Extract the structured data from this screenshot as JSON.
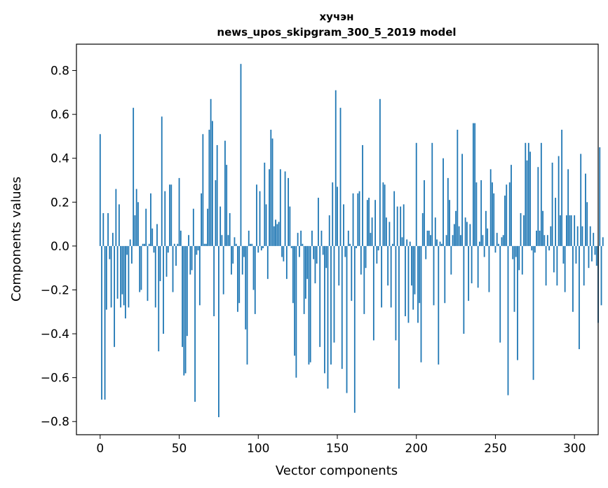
{
  "chart_data": {
    "type": "bar",
    "title": "хучэн",
    "subtitle": "news_upos_skipgram_300_5_2019 model",
    "xlabel": "Vector components",
    "ylabel": "Components values",
    "xlim": [
      -15,
      315
    ],
    "ylim": [
      -0.86,
      0.92
    ],
    "xticks": [
      0,
      50,
      100,
      150,
      200,
      250,
      300
    ],
    "yticks": [
      -0.8,
      -0.6,
      -0.4,
      -0.2,
      0.0,
      0.2,
      0.4,
      0.6,
      0.8
    ],
    "x_tick_labels": [
      "0",
      "50",
      "100",
      "150",
      "200",
      "250",
      "300"
    ],
    "y_tick_labels": [
      "−0.8",
      "−0.6",
      "−0.4",
      "−0.2",
      "0.0",
      "0.2",
      "0.4",
      "0.6",
      "0.8"
    ],
    "bar_color": "#1f77b4",
    "values": [
      0.51,
      -0.7,
      0.15,
      -0.7,
      -0.29,
      0.15,
      -0.06,
      -0.28,
      0.06,
      -0.46,
      0.26,
      -0.24,
      0.19,
      -0.28,
      -0.22,
      -0.27,
      -0.33,
      -0.04,
      -0.28,
      0.03,
      -0.08,
      0.63,
      0.14,
      0.26,
      0.2,
      -0.21,
      -0.2,
      0.01,
      0.01,
      0.17,
      -0.25,
      0.01,
      0.24,
      0.08,
      -0.03,
      -0.28,
      0.1,
      -0.48,
      -0.16,
      0.59,
      -0.4,
      0.25,
      -0.14,
      -0.03,
      0.28,
      0.28,
      -0.21,
      0.01,
      -0.09,
      0.01,
      0.31,
      0.07,
      -0.46,
      -0.59,
      -0.58,
      -0.41,
      0.05,
      -0.13,
      -0.11,
      0.17,
      -0.71,
      -0.04,
      -0.02,
      -0.27,
      0.24,
      0.51,
      0.01,
      0.01,
      0.17,
      0.53,
      0.67,
      0.57,
      -0.32,
      0.3,
      0.46,
      -0.78,
      0.18,
      0.05,
      -0.22,
      0.48,
      0.37,
      0.05,
      0.15,
      -0.13,
      -0.08,
      0.04,
      0.01,
      -0.3,
      -0.26,
      0.83,
      -0.13,
      -0.05,
      -0.38,
      -0.54,
      0.07,
      0.01,
      0.01,
      -0.2,
      -0.31,
      0.28,
      -0.03,
      0.25,
      -0.02,
      -0.01,
      0.38,
      0.19,
      -0.15,
      0.35,
      0.53,
      0.49,
      0.09,
      0.12,
      0.1,
      0.11,
      0.35,
      -0.05,
      -0.07,
      0.34,
      -0.15,
      0.31,
      0.18,
      -0.01,
      -0.26,
      -0.5,
      -0.6,
      0.06,
      -0.05,
      0.07,
      0.01,
      -0.31,
      -0.24,
      -0.15,
      -0.54,
      -0.53,
      0.07,
      -0.06,
      -0.17,
      -0.08,
      0.22,
      -0.46,
      0.07,
      -0.04,
      -0.58,
      -0.1,
      -0.65,
      0.14,
      -0.54,
      0.29,
      -0.44,
      0.71,
      0.27,
      -0.18,
      0.63,
      -0.56,
      0.19,
      -0.05,
      -0.67,
      0.07,
      0.01,
      -0.25,
      0.24,
      -0.76,
      -0.01,
      0.24,
      0.25,
      -0.13,
      0.46,
      -0.31,
      -0.1,
      0.21,
      0.22,
      0.06,
      0.13,
      -0.43,
      0.21,
      -0.08,
      -0.02,
      0.67,
      -0.28,
      0.29,
      0.28,
      0.13,
      -0.18,
      0.11,
      -0.28,
      0.01,
      0.25,
      -0.43,
      0.18,
      -0.65,
      0.18,
      0.04,
      0.19,
      -0.32,
      0.03,
      -0.35,
      0.02,
      -0.18,
      -0.29,
      -0.22,
      0.47,
      -0.35,
      -0.26,
      -0.53,
      0.15,
      0.3,
      -0.06,
      0.07,
      0.07,
      0.05,
      0.47,
      -0.27,
      0.13,
      0.03,
      -0.54,
      0.02,
      0.01,
      0.4,
      -0.26,
      0.05,
      0.31,
      0.21,
      -0.13,
      0.05,
      0.1,
      0.16,
      0.53,
      0.09,
      0.05,
      0.42,
      -0.4,
      0.13,
      0.11,
      -0.25,
      0.1,
      -0.17,
      0.56,
      0.56,
      0.29,
      -0.19,
      0.02,
      0.3,
      0.05,
      -0.05,
      0.16,
      0.08,
      -0.21,
      0.35,
      0.29,
      0.24,
      -0.03,
      0.06,
      0.01,
      -0.44,
      0.04,
      0.05,
      0.23,
      0.28,
      -0.68,
      0.29,
      0.37,
      -0.06,
      -0.3,
      -0.05,
      -0.52,
      -0.11,
      0.15,
      -0.13,
      0.14,
      0.47,
      0.39,
      0.47,
      0.43,
      -0.02,
      -0.61,
      -0.03,
      0.07,
      0.36,
      0.07,
      0.47,
      0.16,
      0.05,
      -0.18,
      0.05,
      -0.02,
      0.09,
      0.38,
      -0.12,
      0.22,
      -0.18,
      0.41,
      0.14,
      0.53,
      -0.08,
      -0.21,
      0.14,
      0.35,
      0.14,
      0.14,
      -0.3,
      0.14,
      -0.08,
      0.09,
      -0.47,
      0.42,
      0.09,
      -0.18,
      0.33,
      0.2,
      -0.1,
      0.09,
      -0.07,
      0.06,
      -0.04,
      -0.09,
      -0.35,
      0.45,
      -0.27,
      0.04
    ]
  }
}
